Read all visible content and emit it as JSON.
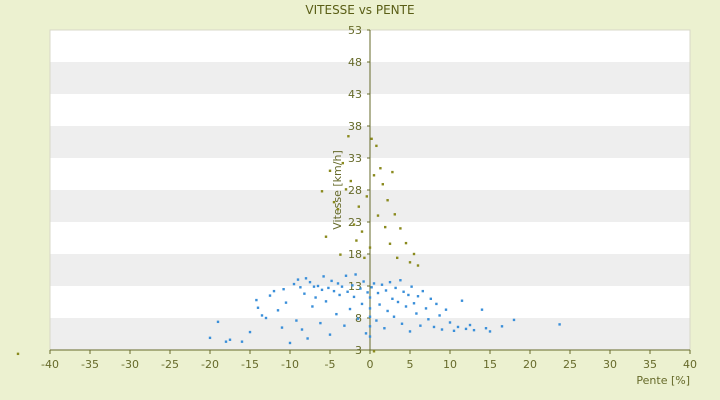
{
  "chart_data": {
    "type": "scatter",
    "title": "VITESSE vs PENTE",
    "xlabel": "Pente [%]",
    "ylabel": "Vitesse [km/h]",
    "xlim": [
      -40,
      40
    ],
    "ylim": [
      3,
      53
    ],
    "xticks": [
      -40,
      -35,
      -30,
      -25,
      -20,
      -15,
      -10,
      -5,
      0,
      5,
      10,
      15,
      20,
      25,
      30,
      35,
      40
    ],
    "yticks": [
      3,
      8,
      13,
      18,
      23,
      28,
      33,
      38,
      43,
      48,
      53
    ],
    "grid": "horizontal alternating bands",
    "legend": "none",
    "colors": {
      "blue": "#3a8fd9",
      "olive": "#8a8a1e",
      "background": "#ecf1d0",
      "band": "#eeeeee"
    },
    "series": [
      {
        "color": "blue",
        "points": [
          [
            -20.0,
            4.9
          ],
          [
            -19.0,
            7.4
          ],
          [
            -18.0,
            4.3
          ],
          [
            -17.5,
            4.6
          ],
          [
            -16.0,
            4.3
          ],
          [
            -15.0,
            5.8
          ],
          [
            -14.2,
            10.8
          ],
          [
            -14.0,
            9.6
          ],
          [
            -13.5,
            8.4
          ],
          [
            -13.0,
            8.0
          ],
          [
            -12.5,
            11.5
          ],
          [
            -12.0,
            12.2
          ],
          [
            -11.5,
            9.2
          ],
          [
            -11.0,
            6.5
          ],
          [
            -10.8,
            12.5
          ],
          [
            -10.5,
            10.4
          ],
          [
            -10.0,
            4.1
          ],
          [
            -9.5,
            13.3
          ],
          [
            -9.2,
            7.6
          ],
          [
            -9.0,
            14.0
          ],
          [
            -8.7,
            12.8
          ],
          [
            -8.5,
            6.2
          ],
          [
            -8.2,
            11.8
          ],
          [
            -8.0,
            14.2
          ],
          [
            -7.8,
            4.8
          ],
          [
            -7.5,
            13.6
          ],
          [
            -7.2,
            9.8
          ],
          [
            -7.0,
            12.9
          ],
          [
            -6.8,
            11.2
          ],
          [
            -6.5,
            13.0
          ],
          [
            -6.2,
            7.2
          ],
          [
            -6.0,
            12.4
          ],
          [
            -5.8,
            14.5
          ],
          [
            -5.5,
            10.6
          ],
          [
            -5.2,
            12.7
          ],
          [
            -5.0,
            5.4
          ],
          [
            -4.8,
            13.8
          ],
          [
            -4.5,
            12.2
          ],
          [
            -4.2,
            8.6
          ],
          [
            -4.0,
            13.4
          ],
          [
            -3.8,
            11.6
          ],
          [
            -3.5,
            12.9
          ],
          [
            -3.2,
            6.8
          ],
          [
            -3.0,
            14.6
          ],
          [
            -2.8,
            12.1
          ],
          [
            -2.5,
            9.4
          ],
          [
            -2.2,
            13.1
          ],
          [
            -2.0,
            11.3
          ],
          [
            -1.8,
            14.8
          ],
          [
            -1.5,
            7.9
          ],
          [
            -1.2,
            12.6
          ],
          [
            -1.0,
            10.2
          ],
          [
            -0.8,
            13.7
          ],
          [
            -0.5,
            5.6
          ],
          [
            -0.3,
            12.0
          ],
          [
            0.0,
            11.2
          ],
          [
            0.0,
            9.5
          ],
          [
            0.0,
            8.2
          ],
          [
            0.0,
            6.7
          ],
          [
            0.0,
            5.1
          ],
          [
            0.2,
            12.8
          ],
          [
            0.5,
            13.4
          ],
          [
            0.8,
            7.6
          ],
          [
            1.0,
            11.9
          ],
          [
            1.2,
            10.1
          ],
          [
            1.5,
            13.2
          ],
          [
            1.8,
            6.4
          ],
          [
            2.0,
            12.3
          ],
          [
            2.2,
            9.1
          ],
          [
            2.5,
            13.6
          ],
          [
            2.8,
            11.0
          ],
          [
            3.0,
            8.2
          ],
          [
            3.2,
            12.7
          ],
          [
            3.5,
            10.5
          ],
          [
            3.8,
            13.9
          ],
          [
            4.0,
            7.1
          ],
          [
            4.2,
            12.1
          ],
          [
            4.5,
            9.8
          ],
          [
            4.8,
            11.6
          ],
          [
            5.0,
            5.9
          ],
          [
            5.2,
            12.9
          ],
          [
            5.5,
            10.3
          ],
          [
            5.8,
            8.7
          ],
          [
            6.0,
            11.4
          ],
          [
            6.3,
            6.8
          ],
          [
            6.6,
            12.2
          ],
          [
            7.0,
            9.5
          ],
          [
            7.3,
            7.8
          ],
          [
            7.6,
            11.0
          ],
          [
            8.0,
            6.6
          ],
          [
            8.3,
            10.2
          ],
          [
            8.7,
            8.4
          ],
          [
            9.0,
            6.2
          ],
          [
            9.5,
            9.3
          ],
          [
            10.0,
            7.3
          ],
          [
            10.5,
            6.0
          ],
          [
            11.0,
            6.6
          ],
          [
            11.5,
            10.7
          ],
          [
            12.0,
            6.3
          ],
          [
            12.5,
            6.9
          ],
          [
            13.0,
            6.1
          ],
          [
            14.0,
            9.3
          ],
          [
            14.5,
            6.4
          ],
          [
            15.0,
            5.9
          ],
          [
            16.5,
            6.7
          ],
          [
            18.0,
            7.7
          ],
          [
            23.7,
            7.0
          ]
        ]
      },
      {
        "color": "olive",
        "points": [
          [
            -6.0,
            27.8
          ],
          [
            -5.5,
            20.7
          ],
          [
            -5.0,
            31.0
          ],
          [
            -4.5,
            26.1
          ],
          [
            -4.0,
            25.0
          ],
          [
            -3.7,
            17.9
          ],
          [
            -3.4,
            32.2
          ],
          [
            -3.0,
            28.1
          ],
          [
            -2.7,
            36.4
          ],
          [
            -2.4,
            29.4
          ],
          [
            -2.0,
            22.6
          ],
          [
            -1.7,
            20.1
          ],
          [
            -1.4,
            25.4
          ],
          [
            -1.0,
            21.5
          ],
          [
            -0.7,
            17.4
          ],
          [
            -0.4,
            27.0
          ],
          [
            0.0,
            19.0
          ],
          [
            0.2,
            36.0
          ],
          [
            0.5,
            30.3
          ],
          [
            0.8,
            34.9
          ],
          [
            1.0,
            24.0
          ],
          [
            1.3,
            31.4
          ],
          [
            1.6,
            28.9
          ],
          [
            1.9,
            22.2
          ],
          [
            2.2,
            26.4
          ],
          [
            2.5,
            19.6
          ],
          [
            2.8,
            30.8
          ],
          [
            3.1,
            24.2
          ],
          [
            3.4,
            17.4
          ],
          [
            3.8,
            22.0
          ],
          [
            4.5,
            19.7
          ],
          [
            5.0,
            16.7
          ],
          [
            5.5,
            18.0
          ],
          [
            6.0,
            16.2
          ],
          [
            0.5,
            2.8
          ],
          [
            -44.0,
            2.4
          ]
        ]
      }
    ]
  }
}
